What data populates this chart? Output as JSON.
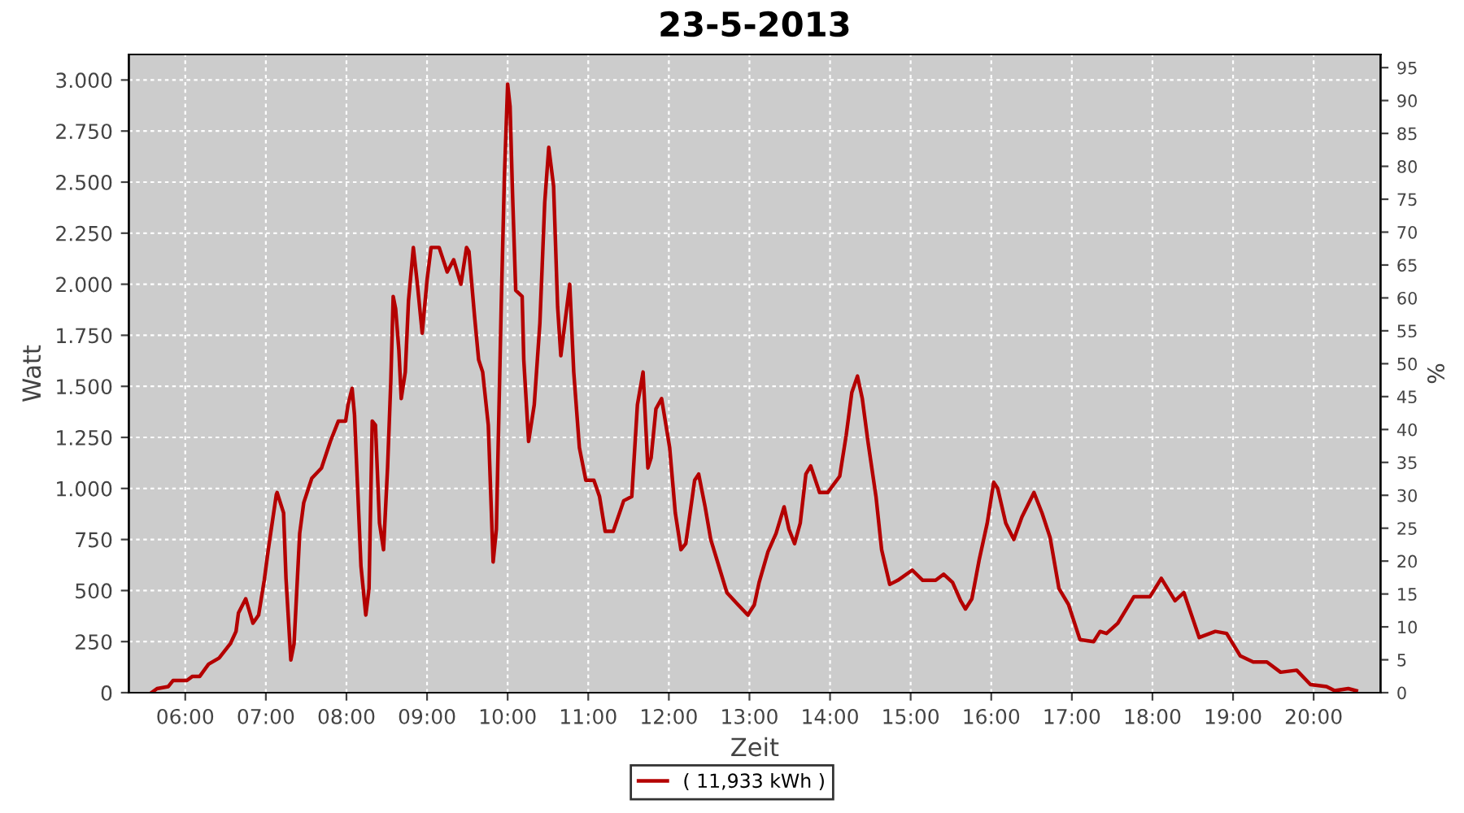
{
  "chart_data": {
    "type": "line",
    "title": "23-5-2013",
    "xlabel": "Zeit",
    "ylabel": "Watt",
    "y2label": "%",
    "xlim": [
      5.3,
      20.83
    ],
    "ylim": [
      0,
      3125
    ],
    "y2lim": [
      0,
      97
    ],
    "xticks": [
      {
        "value": 6,
        "label": "06:00"
      },
      {
        "value": 7,
        "label": "07:00"
      },
      {
        "value": 8,
        "label": "08:00"
      },
      {
        "value": 9,
        "label": "09:00"
      },
      {
        "value": 10,
        "label": "10:00"
      },
      {
        "value": 11,
        "label": "11:00"
      },
      {
        "value": 12,
        "label": "12:00"
      },
      {
        "value": 13,
        "label": "13:00"
      },
      {
        "value": 14,
        "label": "14:00"
      },
      {
        "value": 15,
        "label": "15:00"
      },
      {
        "value": 16,
        "label": "16:00"
      },
      {
        "value": 17,
        "label": "17:00"
      },
      {
        "value": 18,
        "label": "18:00"
      },
      {
        "value": 19,
        "label": "19:00"
      },
      {
        "value": 20,
        "label": "20:00"
      }
    ],
    "yticks": [
      0,
      250,
      500,
      750,
      {
        "value": 1000,
        "label": "1.000"
      },
      {
        "value": 1250,
        "label": "1.250"
      },
      {
        "value": 1500,
        "label": "1.500"
      },
      {
        "value": 1750,
        "label": "1.750"
      },
      {
        "value": 2000,
        "label": "2.000"
      },
      {
        "value": 2250,
        "label": "2.250"
      },
      {
        "value": 2500,
        "label": "2.500"
      },
      {
        "value": 2750,
        "label": "2.750"
      },
      {
        "value": 3000,
        "label": "3.000"
      }
    ],
    "y2ticks": [
      0,
      5,
      10,
      15,
      20,
      25,
      30,
      35,
      40,
      45,
      50,
      55,
      60,
      65,
      70,
      75,
      80,
      85,
      90,
      95
    ],
    "grid": true,
    "legend": "bottom",
    "line_style": "solid",
    "marker": "none",
    "series": [
      {
        "name": "( 11,933 kWh )",
        "color": "#b40000",
        "x": [
          5.58,
          5.65,
          5.79,
          5.85,
          6.02,
          6.09,
          6.18,
          6.29,
          6.42,
          6.56,
          6.63,
          6.66,
          6.75,
          6.84,
          6.91,
          6.98,
          7.03,
          7.13,
          7.14,
          7.22,
          7.25,
          7.31,
          7.35,
          7.42,
          7.47,
          7.57,
          7.69,
          7.8,
          7.9,
          7.99,
          8.02,
          8.07,
          8.1,
          8.18,
          8.24,
          8.28,
          8.32,
          8.36,
          8.41,
          8.46,
          8.51,
          8.55,
          8.58,
          8.61,
          8.65,
          8.68,
          8.73,
          8.77,
          8.83,
          8.88,
          8.94,
          9.0,
          9.05,
          9.15,
          9.25,
          9.33,
          9.42,
          9.49,
          9.52,
          9.59,
          9.64,
          9.69,
          9.76,
          9.82,
          9.86,
          9.92,
          9.96,
          10.0,
          10.03,
          10.06,
          10.1,
          10.18,
          10.2,
          10.26,
          10.33,
          10.4,
          10.46,
          10.51,
          10.57,
          10.62,
          10.66,
          10.77,
          10.82,
          10.89,
          10.97,
          11.07,
          11.14,
          11.21,
          11.31,
          11.44,
          11.54,
          11.61,
          11.68,
          11.74,
          11.78,
          11.84,
          11.91,
          12.01,
          12.08,
          12.15,
          12.21,
          12.32,
          12.37,
          12.45,
          12.52,
          12.62,
          12.72,
          12.86,
          12.98,
          13.06,
          13.12,
          13.23,
          13.33,
          13.43,
          13.49,
          13.56,
          13.63,
          13.7,
          13.76,
          13.87,
          13.97,
          14.12,
          14.2,
          14.27,
          14.34,
          14.4,
          14.47,
          14.57,
          14.64,
          14.74,
          14.84,
          15.02,
          15.15,
          15.31,
          15.41,
          15.52,
          15.62,
          15.68,
          15.76,
          15.85,
          15.95,
          16.03,
          16.08,
          16.18,
          16.28,
          16.38,
          16.53,
          16.63,
          16.73,
          16.84,
          16.96,
          17.1,
          17.27,
          17.35,
          17.43,
          17.57,
          17.77,
          17.97,
          18.11,
          18.28,
          18.39,
          18.58,
          18.78,
          18.92,
          19.09,
          19.25,
          19.42,
          19.59,
          19.79,
          19.96,
          20.16,
          20.26,
          20.43,
          20.53
        ],
        "values": [
          0,
          20,
          30,
          60,
          60,
          80,
          80,
          140,
          170,
          240,
          300,
          390,
          460,
          340,
          380,
          550,
          700,
          970,
          980,
          880,
          560,
          160,
          240,
          780,
          930,
          1050,
          1100,
          1230,
          1330,
          1330,
          1410,
          1490,
          1360,
          620,
          380,
          510,
          1330,
          1310,
          830,
          700,
          1100,
          1520,
          1940,
          1880,
          1680,
          1440,
          1570,
          1920,
          2180,
          2000,
          1760,
          2020,
          2180,
          2180,
          2060,
          2120,
          2000,
          2180,
          2160,
          1840,
          1630,
          1570,
          1310,
          640,
          800,
          1890,
          2530,
          2980,
          2870,
          2450,
          1970,
          1940,
          1630,
          1230,
          1410,
          1810,
          2400,
          2670,
          2480,
          1890,
          1650,
          2000,
          1570,
          1200,
          1040,
          1040,
          960,
          790,
          790,
          940,
          960,
          1410,
          1570,
          1100,
          1150,
          1390,
          1440,
          1200,
          880,
          700,
          730,
          1040,
          1070,
          910,
          750,
          620,
          490,
          430,
          380,
          430,
          540,
          690,
          780,
          910,
          800,
          730,
          830,
          1070,
          1110,
          980,
          980,
          1060,
          1260,
          1470,
          1550,
          1440,
          1230,
          960,
          700,
          530,
          550,
          600,
          550,
          550,
          580,
          540,
          450,
          410,
          460,
          650,
          830,
          1030,
          1000,
          830,
          750,
          860,
          980,
          880,
          760,
          510,
          430,
          260,
          250,
          300,
          290,
          340,
          470,
          470,
          560,
          450,
          490,
          270,
          300,
          290,
          180,
          150,
          150,
          100,
          110,
          40,
          30,
          10,
          20,
          10
        ]
      }
    ]
  }
}
